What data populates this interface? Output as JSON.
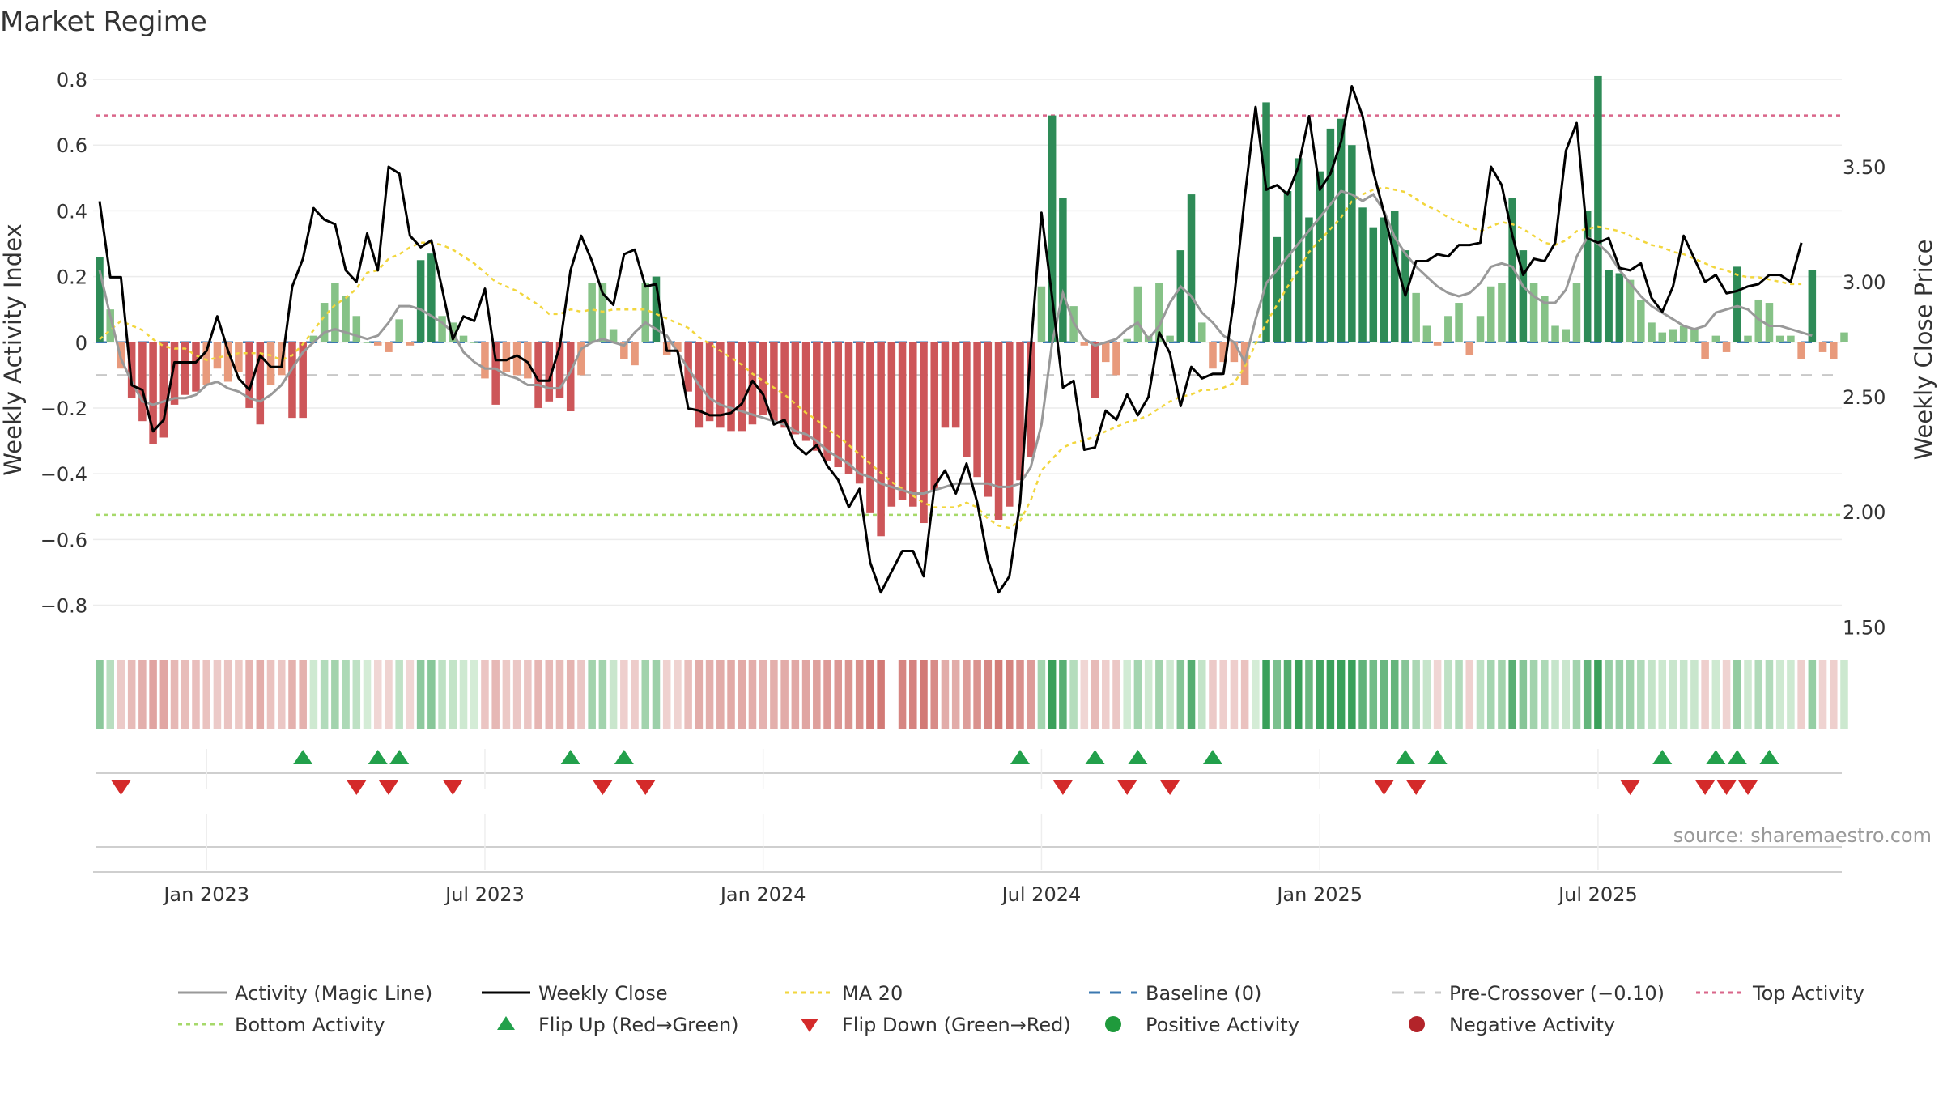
{
  "chart_data": {
    "type": "bar",
    "title": "Market Regime",
    "source": "source: sharemaestro.com",
    "y_left": {
      "label": "Weekly Activity Index",
      "lim": [
        -0.88,
        0.8
      ],
      "ticks": [
        0.8,
        0.6,
        0.4,
        0.2,
        0,
        -0.2,
        -0.4,
        -0.6,
        -0.8
      ],
      "tick_labels": [
        "0.8",
        "0.6",
        "0.4",
        "0.2",
        "0",
        "−0.2",
        "−0.4",
        "−0.6",
        "−0.8"
      ]
    },
    "y_right": {
      "label": "Weekly Close Price",
      "lim": [
        1.48,
        3.88
      ],
      "ticks": [
        3.5,
        3.0,
        2.5,
        2.0,
        1.5
      ],
      "tick_labels": [
        "3.50",
        "3.00",
        "2.50",
        "2.00",
        "1.50"
      ]
    },
    "x_axis": {
      "ticks": [
        10,
        36,
        62,
        88,
        114,
        140
      ],
      "tick_labels": [
        "Jan 2023",
        "Jul 2023",
        "Jan 2024",
        "Jul 2024",
        "Jan 2025",
        "Jul 2025"
      ]
    },
    "reference_lines": {
      "top_activity": 0.69,
      "bottom_activity": -0.525,
      "pre_crossover": -0.1,
      "baseline": 0
    },
    "grid": true,
    "legend_position": "bottom",
    "legend": [
      {
        "label": "Activity (Magic Line)",
        "kind": "line",
        "color": "#999999",
        "dash": ""
      },
      {
        "label": "Weekly Close",
        "kind": "line",
        "color": "#000000",
        "dash": ""
      },
      {
        "label": "MA 20",
        "kind": "line",
        "color": "#f2d63d",
        "dash": "5,5"
      },
      {
        "label": "Baseline (0)",
        "kind": "line",
        "color": "#3b78b0",
        "dash": "14,12"
      },
      {
        "label": "Pre-Crossover (−0.10)",
        "kind": "line",
        "color": "#c8c8c8",
        "dash": "14,12"
      },
      {
        "label": "Top Activity",
        "kind": "line",
        "color": "#d9668a",
        "dash": "5,5"
      },
      {
        "label": "Bottom Activity",
        "kind": "line",
        "color": "#a6d96a",
        "dash": "5,5"
      },
      {
        "label": "Flip Up (Red→Green)",
        "kind": "tri-up",
        "color": "#22a04b"
      },
      {
        "label": "Flip Down (Green→Red)",
        "kind": "tri-down",
        "color": "#d42a2a"
      },
      {
        "label": "Positive Activity",
        "kind": "dot",
        "color": "#1f9a3c"
      },
      {
        "label": "Negative Activity",
        "kind": "dot",
        "color": "#b3242a"
      }
    ],
    "colors": {
      "green_dark": "#2e8b57",
      "green_light": "#86c287",
      "red_dark": "#cd5659",
      "red_light": "#e89a7c"
    },
    "series": [
      {
        "name": "Activity (Magic Line)",
        "values": [
          0.22,
          0.08,
          -0.05,
          -0.12,
          -0.18,
          -0.19,
          -0.18,
          -0.17,
          -0.17,
          -0.16,
          -0.13,
          -0.12,
          -0.14,
          -0.15,
          -0.17,
          -0.18,
          -0.16,
          -0.13,
          -0.08,
          -0.03,
          0.0,
          0.03,
          0.04,
          0.03,
          0.02,
          0.01,
          0.02,
          0.06,
          0.11,
          0.11,
          0.1,
          0.08,
          0.06,
          0.03,
          -0.03,
          -0.06,
          -0.08,
          -0.08,
          -0.1,
          -0.11,
          -0.13,
          -0.13,
          -0.14,
          -0.14,
          -0.09,
          -0.02,
          0.0,
          0.01,
          0.0,
          -0.01,
          0.03,
          0.06,
          0.04,
          0.02,
          -0.03,
          -0.08,
          -0.13,
          -0.17,
          -0.19,
          -0.2,
          -0.21,
          -0.22,
          -0.23,
          -0.24,
          -0.25,
          -0.27,
          -0.28,
          -0.3,
          -0.33,
          -0.35,
          -0.37,
          -0.4,
          -0.41,
          -0.43,
          -0.44,
          -0.45,
          -0.46,
          -0.46,
          -0.45,
          -0.44,
          -0.43,
          -0.43,
          -0.43,
          -0.43,
          -0.44,
          -0.44,
          -0.43,
          -0.38,
          -0.25,
          0.0,
          0.15,
          0.06,
          0.01,
          -0.01,
          0.0,
          0.01,
          0.04,
          0.06,
          0.01,
          0.05,
          0.12,
          0.17,
          0.14,
          0.09,
          0.06,
          0.02,
          0.0,
          -0.06,
          0.07,
          0.18,
          0.22,
          0.26,
          0.3,
          0.34,
          0.38,
          0.42,
          0.46,
          0.45,
          0.43,
          0.45,
          0.4,
          0.32,
          0.27,
          0.23,
          0.2,
          0.17,
          0.15,
          0.14,
          0.15,
          0.18,
          0.23,
          0.24,
          0.23,
          0.17,
          0.14,
          0.12,
          0.12,
          0.16,
          0.26,
          0.32,
          0.3,
          0.27,
          0.22,
          0.18,
          0.14,
          0.11,
          0.09,
          0.07,
          0.05,
          0.04,
          0.05,
          0.09,
          0.1,
          0.11,
          0.1,
          0.07,
          0.05,
          0.05,
          0.04,
          0.03,
          0.02
        ]
      },
      {
        "name": "Weekly Close",
        "values": [
          3.35,
          3.02,
          3.02,
          2.55,
          2.53,
          2.35,
          2.4,
          2.65,
          2.65,
          2.65,
          2.7,
          2.85,
          2.7,
          2.58,
          2.53,
          2.68,
          2.63,
          2.63,
          2.98,
          3.1,
          3.32,
          3.27,
          3.25,
          3.05,
          3.0,
          3.21,
          3.05,
          3.5,
          3.47,
          3.2,
          3.15,
          3.18,
          2.97,
          2.75,
          2.85,
          2.83,
          2.97,
          2.66,
          2.66,
          2.68,
          2.65,
          2.57,
          2.57,
          2.72,
          3.05,
          3.2,
          3.09,
          2.95,
          2.9,
          3.12,
          3.14,
          2.98,
          2.99,
          2.7,
          2.7,
          2.45,
          2.44,
          2.42,
          2.42,
          2.43,
          2.47,
          2.57,
          2.51,
          2.38,
          2.4,
          2.29,
          2.25,
          2.29,
          2.2,
          2.14,
          2.02,
          2.1,
          1.78,
          1.65,
          1.74,
          1.83,
          1.83,
          1.72,
          2.11,
          2.18,
          2.08,
          2.21,
          2.04,
          1.79,
          1.65,
          1.72,
          2.04,
          2.71,
          3.3,
          2.93,
          2.54,
          2.57,
          2.27,
          2.28,
          2.44,
          2.4,
          2.51,
          2.42,
          2.5,
          2.78,
          2.69,
          2.46,
          2.63,
          2.58,
          2.6,
          2.6,
          2.93,
          3.37,
          3.76,
          3.4,
          3.42,
          3.38,
          3.5,
          3.72,
          3.4,
          3.47,
          3.61,
          3.85,
          3.72,
          3.48,
          3.3,
          3.11,
          2.94,
          3.09,
          3.09,
          3.12,
          3.11,
          3.16,
          3.16,
          3.17,
          3.5,
          3.42,
          3.2,
          3.03,
          3.1,
          3.09,
          3.17,
          3.57,
          3.69,
          3.19,
          3.17,
          3.19,
          3.06,
          3.05,
          3.08,
          2.93,
          2.87,
          2.98,
          3.2,
          3.1,
          3.0,
          3.03,
          2.95,
          2.96,
          2.98,
          2.99,
          3.03,
          3.03,
          3.0,
          3.17
        ]
      },
      {
        "name": "MA 20",
        "values": [
          2.75,
          2.79,
          2.83,
          2.81,
          2.79,
          2.75,
          2.72,
          2.71,
          2.71,
          2.68,
          2.66,
          2.67,
          2.68,
          2.69,
          2.69,
          2.69,
          2.68,
          2.66,
          2.68,
          2.73,
          2.79,
          2.85,
          2.9,
          2.93,
          2.97,
          3.04,
          3.05,
          3.1,
          3.12,
          3.15,
          3.17,
          3.17,
          3.16,
          3.14,
          3.11,
          3.08,
          3.04,
          3.0,
          2.98,
          2.96,
          2.93,
          2.9,
          2.86,
          2.86,
          2.88,
          2.87,
          2.88,
          2.87,
          2.88,
          2.88,
          2.88,
          2.88,
          2.86,
          2.84,
          2.82,
          2.8,
          2.76,
          2.73,
          2.7,
          2.67,
          2.64,
          2.6,
          2.57,
          2.54,
          2.51,
          2.47,
          2.43,
          2.4,
          2.36,
          2.33,
          2.29,
          2.25,
          2.21,
          2.17,
          2.13,
          2.1,
          2.07,
          2.04,
          2.02,
          2.02,
          2.02,
          2.04,
          2.02,
          1.97,
          1.94,
          1.93,
          1.96,
          2.05,
          2.18,
          2.23,
          2.28,
          2.3,
          2.31,
          2.33,
          2.35,
          2.37,
          2.39,
          2.4,
          2.42,
          2.45,
          2.48,
          2.5,
          2.51,
          2.53,
          2.53,
          2.54,
          2.56,
          2.63,
          2.73,
          2.82,
          2.9,
          2.98,
          3.05,
          3.13,
          3.18,
          3.23,
          3.28,
          3.35,
          3.38,
          3.4,
          3.41,
          3.4,
          3.39,
          3.36,
          3.33,
          3.31,
          3.28,
          3.26,
          3.24,
          3.22,
          3.24,
          3.26,
          3.25,
          3.23,
          3.2,
          3.17,
          3.16,
          3.18,
          3.22,
          3.23,
          3.24,
          3.23,
          3.22,
          3.2,
          3.18,
          3.16,
          3.15,
          3.13,
          3.12,
          3.1,
          3.08,
          3.06,
          3.05,
          3.03,
          3.02,
          3.02,
          3.01,
          3.0,
          2.99,
          2.99
        ]
      },
      {
        "name": "Activity Index",
        "values": [
          0.26,
          0.1,
          -0.08,
          -0.17,
          -0.24,
          -0.31,
          -0.29,
          -0.19,
          -0.16,
          -0.15,
          -0.13,
          -0.08,
          -0.12,
          -0.09,
          -0.2,
          -0.25,
          -0.13,
          -0.1,
          -0.23,
          -0.23,
          0.02,
          0.12,
          0.18,
          0.14,
          0.08,
          0.0,
          -0.01,
          -0.03,
          0.07,
          -0.01,
          0.25,
          0.27,
          0.08,
          0.06,
          0.02,
          0.0,
          -0.11,
          -0.19,
          -0.09,
          -0.1,
          -0.11,
          -0.2,
          -0.18,
          -0.17,
          -0.21,
          -0.1,
          0.18,
          0.18,
          0.04,
          -0.05,
          -0.07,
          0.18,
          0.2,
          -0.04,
          -0.03,
          -0.15,
          -0.26,
          -0.24,
          -0.26,
          -0.27,
          -0.27,
          -0.25,
          -0.22,
          -0.24,
          -0.26,
          -0.28,
          -0.3,
          -0.33,
          -0.36,
          -0.38,
          -0.4,
          -0.43,
          -0.52,
          -0.59,
          -0.5,
          -0.48,
          -0.5,
          -0.55,
          -0.45,
          -0.26,
          -0.26,
          -0.35,
          -0.41,
          -0.47,
          -0.54,
          -0.5,
          -0.42,
          -0.35,
          0.17,
          0.69,
          0.44,
          0.11,
          -0.01,
          -0.17,
          -0.06,
          -0.1,
          0.01,
          0.17,
          0.02,
          0.18,
          0.02,
          0.28,
          0.45,
          0.06,
          -0.08,
          -0.06,
          -0.06,
          -0.13,
          0.0,
          0.73,
          0.32,
          0.46,
          0.56,
          0.38,
          0.52,
          0.65,
          0.68,
          0.6,
          0.41,
          0.35,
          0.38,
          0.4,
          0.28,
          0.15,
          0.05,
          -0.01,
          0.08,
          0.12,
          -0.04,
          0.08,
          0.17,
          0.18,
          0.44,
          0.28,
          0.18,
          0.14,
          0.05,
          0.04,
          0.18,
          0.4,
          0.81,
          0.22,
          0.21,
          0.19,
          0.13,
          0.06,
          0.03,
          0.04,
          0.05,
          0.04,
          -0.05,
          0.02,
          -0.03,
          0.23,
          0.02,
          0.13,
          0.12,
          0.02,
          0.02,
          -0.05,
          0.22,
          -0.03,
          -0.05,
          0.03
        ]
      }
    ],
    "regime_strip": [
      0.26,
      0.1,
      -0.08,
      -0.17,
      -0.24,
      -0.31,
      -0.29,
      -0.19,
      -0.16,
      -0.15,
      -0.13,
      -0.08,
      -0.12,
      -0.09,
      -0.2,
      -0.25,
      -0.13,
      -0.1,
      -0.23,
      -0.23,
      0.02,
      0.12,
      0.18,
      0.14,
      0.08,
      0.0,
      -0.01,
      -0.03,
      0.07,
      -0.01,
      0.25,
      0.27,
      0.08,
      0.06,
      0.02,
      0.0,
      -0.11,
      -0.19,
      -0.09,
      -0.1,
      -0.11,
      -0.2,
      -0.18,
      -0.17,
      -0.21,
      -0.1,
      0.18,
      0.18,
      0.04,
      -0.05,
      -0.07,
      0.18,
      0.2,
      -0.04,
      -0.03,
      -0.15,
      -0.26,
      -0.24,
      -0.26,
      -0.27,
      -0.27,
      -0.25,
      -0.22,
      -0.24,
      -0.26,
      -0.28,
      -0.3,
      -0.33,
      -0.36,
      -0.38,
      -0.4,
      -0.43,
      -0.52,
      -0.59,
      null,
      -0.48,
      -0.5,
      -0.55,
      -0.45,
      -0.26,
      -0.26,
      -0.35,
      -0.41,
      -0.47,
      -0.54,
      -0.5,
      -0.42,
      -0.35,
      0.17,
      0.69,
      0.44,
      0.11,
      -0.01,
      -0.17,
      -0.06,
      -0.1,
      0.01,
      0.17,
      0.02,
      0.18,
      0.02,
      0.28,
      0.45,
      0.06,
      -0.08,
      -0.06,
      -0.06,
      -0.13,
      0.0,
      0.73,
      0.32,
      0.46,
      0.56,
      0.38,
      0.52,
      0.65,
      0.68,
      0.6,
      0.41,
      0.35,
      0.38,
      0.4,
      0.28,
      0.15,
      0.05,
      -0.01,
      0.08,
      0.12,
      -0.04,
      0.08,
      0.17,
      0.18,
      0.44,
      0.28,
      0.18,
      0.14,
      0.05,
      0.04,
      0.18,
      0.4,
      0.81,
      0.22,
      0.21,
      0.19,
      0.13,
      0.06,
      0.03,
      0.04,
      0.05,
      0.04,
      -0.05,
      0.02,
      -0.03,
      0.23,
      0.02,
      0.13,
      0.12,
      0.02,
      0.02,
      -0.05,
      0.22,
      -0.03,
      -0.05,
      0.03
    ],
    "flip_up_weeks": [
      19,
      26,
      28,
      44,
      49,
      86,
      93,
      97,
      104,
      122,
      125,
      146,
      151,
      153,
      156
    ],
    "flip_down_weeks": [
      2,
      24,
      27,
      33,
      47,
      51,
      90,
      96,
      100,
      120,
      123,
      143,
      150,
      152,
      154
    ]
  }
}
